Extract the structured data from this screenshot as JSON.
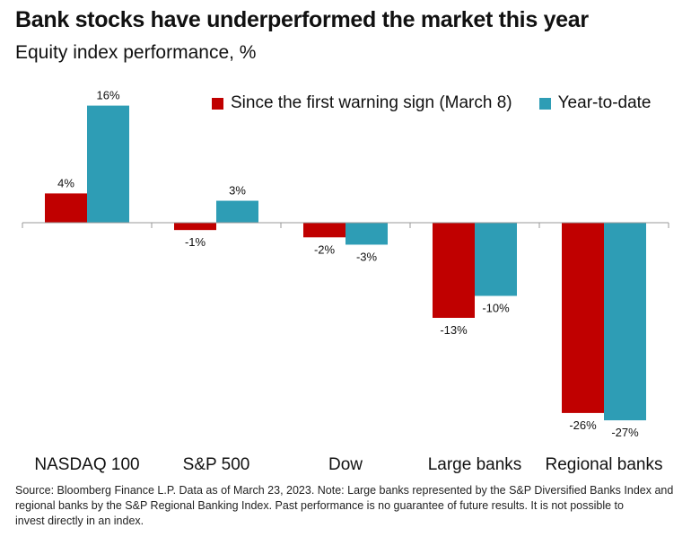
{
  "title": "Bank stocks have underperformed the market this year",
  "subtitle": "Equity index performance, %",
  "colors": {
    "series1": "#c00000",
    "series2": "#2e9db5",
    "axis": "#999999"
  },
  "chart_data": {
    "type": "bar",
    "title": "Bank stocks have underperformed the market this year",
    "ylabel": "Equity index performance, %",
    "xlabel": "",
    "ylim": [
      -27,
      16
    ],
    "grid": false,
    "legend_position": "top-right",
    "categories": [
      "NASDAQ 100",
      "S&P 500",
      "Dow",
      "Large banks",
      "Regional banks"
    ],
    "series": [
      {
        "name": "Since the first warning sign (March 8)",
        "values": [
          4,
          -1,
          -2,
          -13,
          -26
        ],
        "labels": [
          "4%",
          "-1%",
          "-2%",
          "-13%",
          "-26%"
        ]
      },
      {
        "name": "Year-to-date",
        "values": [
          16,
          3,
          -3,
          -10,
          -27
        ],
        "labels": [
          "16%",
          "3%",
          "-3%",
          "-10%",
          "-27%"
        ]
      }
    ]
  },
  "source_lines": [
    "Source: Bloomberg Finance L.P. Data as of March 23, 2023. Note: Large banks represented by the S&P Diversified Banks Index and",
    "regional banks by the S&P Regional Banking Index. Past performance is no guarantee of future results. It is not possible to",
    "invest directly in an index."
  ]
}
